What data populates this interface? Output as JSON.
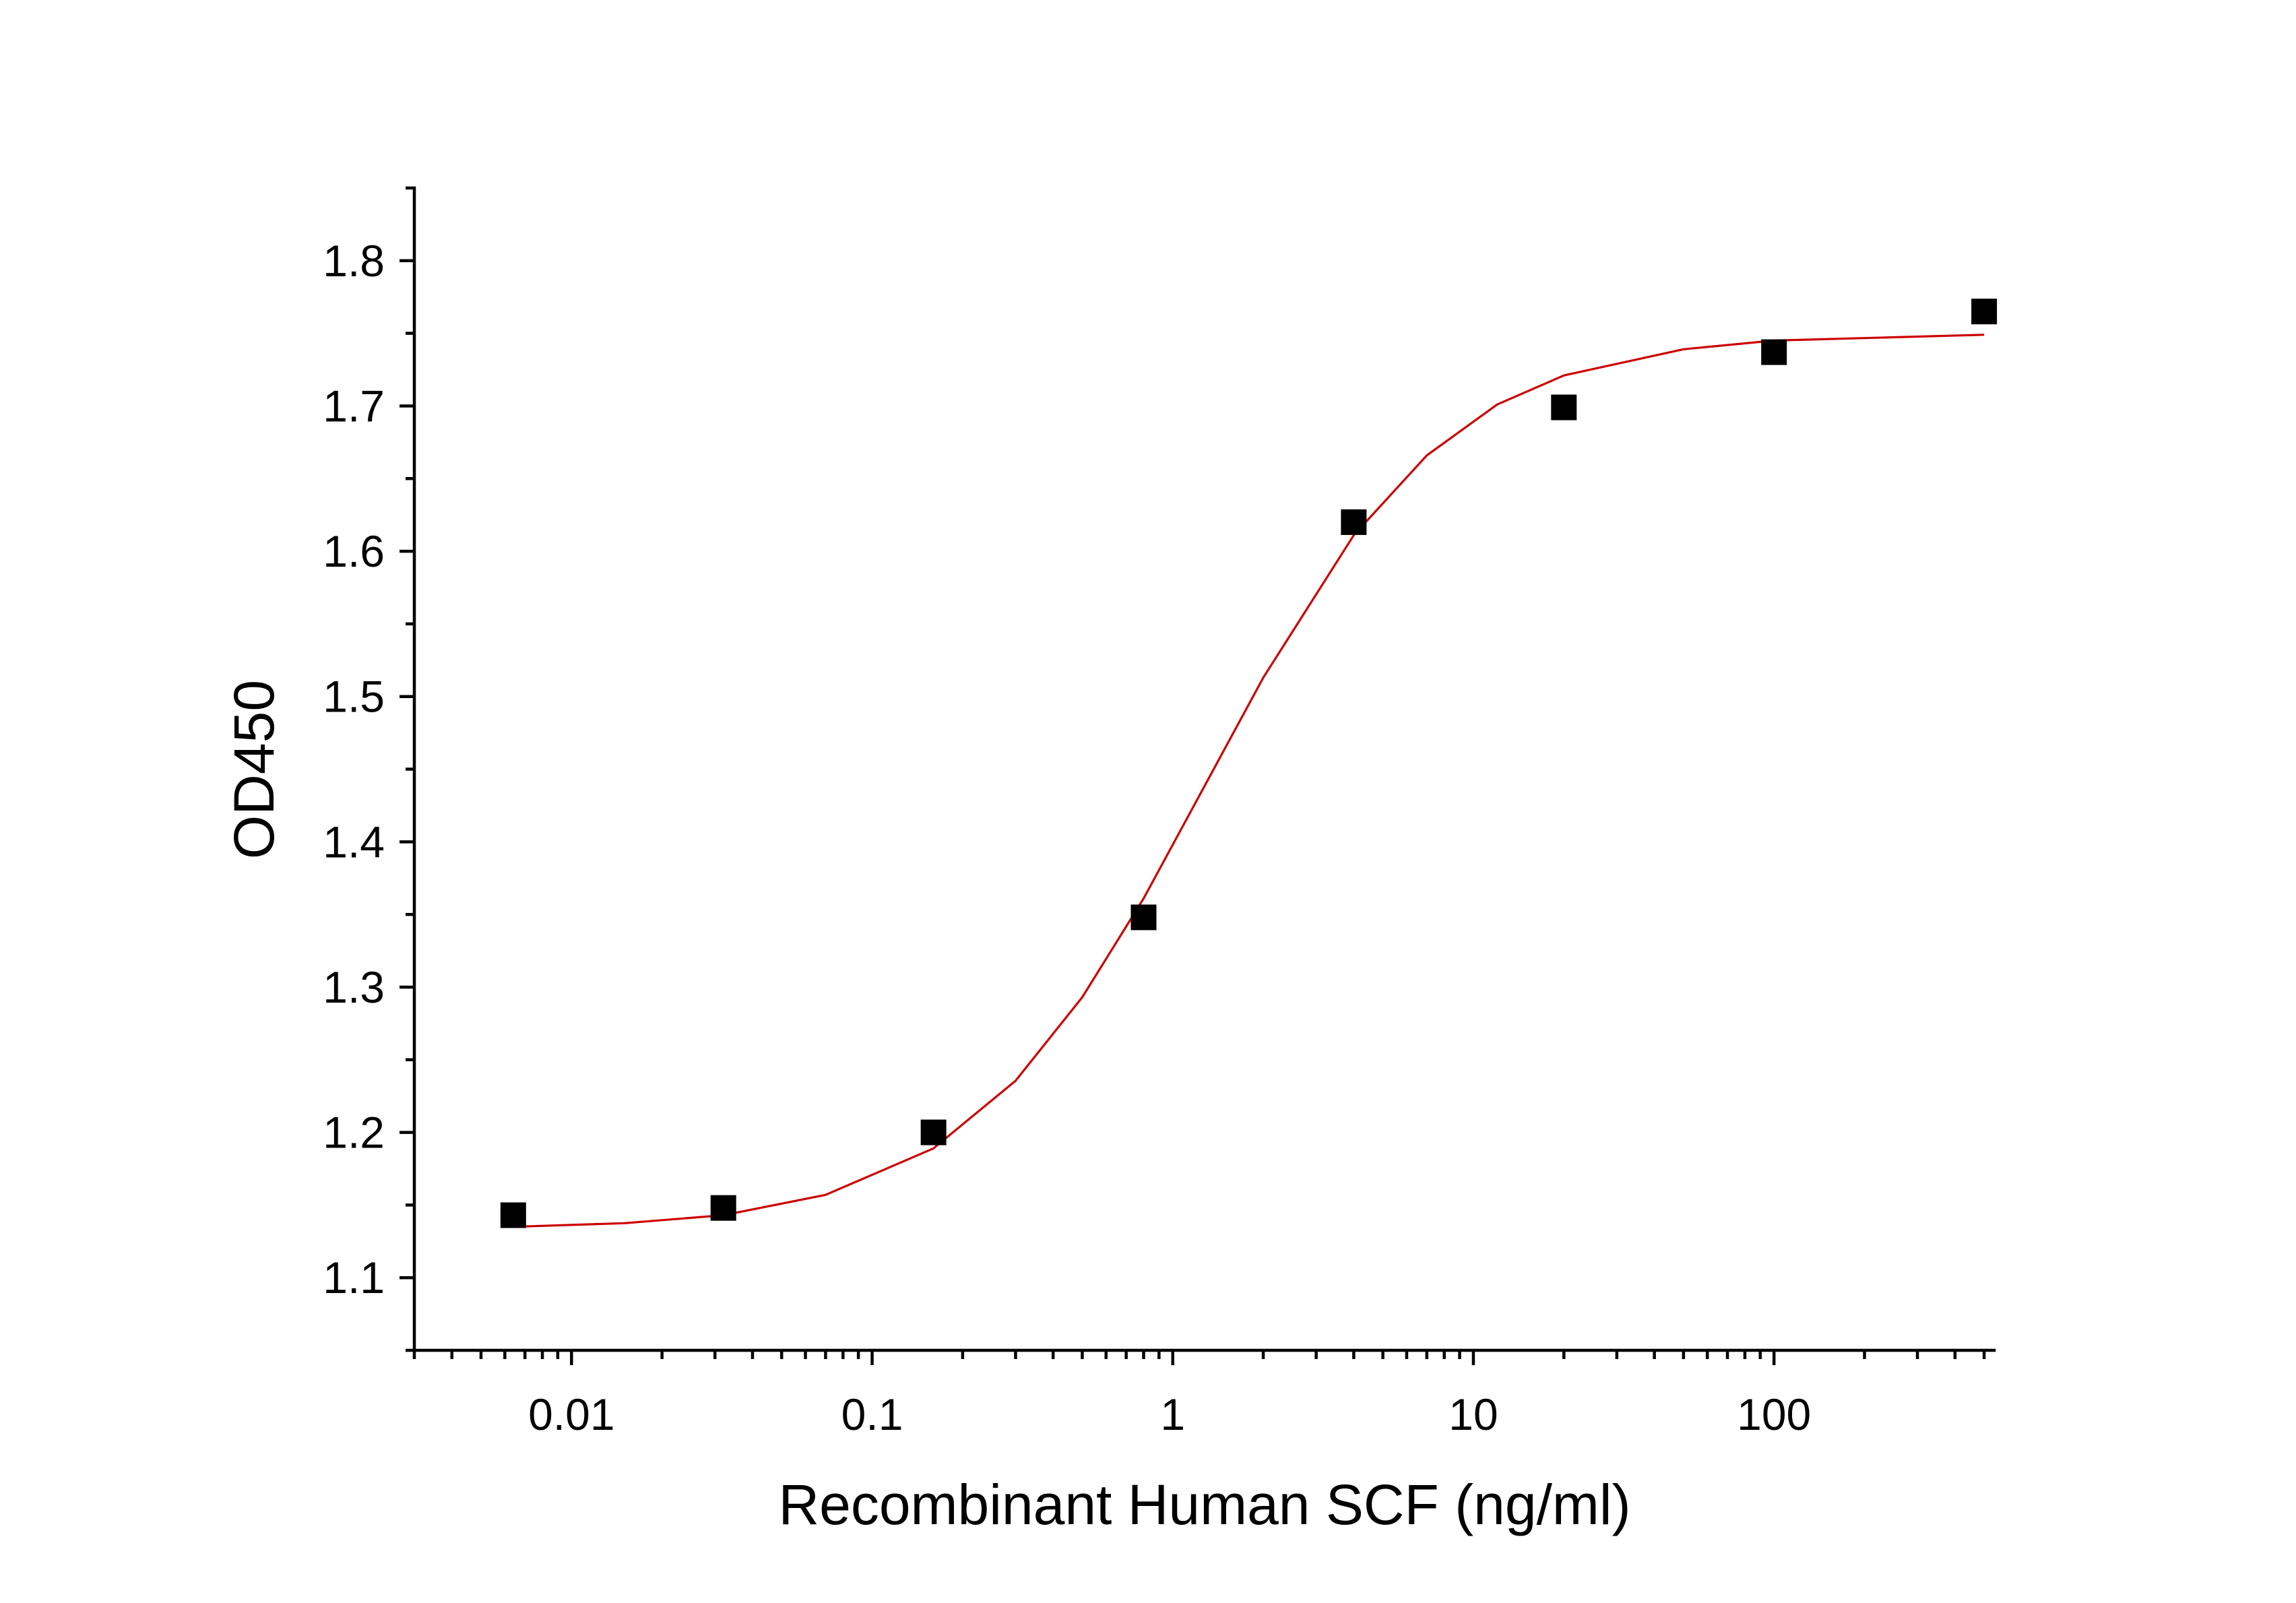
{
  "chart_data": {
    "type": "scatter",
    "xlabel": "Recombinant Human SCF (ng/ml)",
    "ylabel": "OD450",
    "log_x": true,
    "xlim": [
      0.003,
      540
    ],
    "xticks": [
      0.01,
      0.1,
      1,
      10,
      100
    ],
    "ylim": [
      1.05,
      1.85
    ],
    "yticks": [
      1.1,
      1.2,
      1.3,
      1.4,
      1.5,
      1.6,
      1.7,
      1.8
    ],
    "grid": false,
    "series": [
      {
        "color": "#000000",
        "x": [
          0.0064,
          0.032,
          0.16,
          0.8,
          4,
          20,
          100,
          500
        ],
        "values": [
          1.143,
          1.148,
          1.2,
          1.348,
          1.62,
          1.699,
          1.737,
          1.765
        ]
      }
    ],
    "fit_curve": {
      "color": "#cc0000",
      "x": [
        0.0064,
        0.015,
        0.032,
        0.07,
        0.16,
        0.3,
        0.5,
        0.8,
        1.3,
        2,
        4,
        7,
        12,
        20,
        50,
        100,
        500
      ],
      "values": [
        1.135,
        1.1375,
        1.143,
        1.157,
        1.189,
        1.2355,
        1.293,
        1.361,
        1.4415,
        1.513,
        1.611,
        1.666,
        1.701,
        1.721,
        1.739,
        1.745,
        1.749
      ]
    }
  }
}
